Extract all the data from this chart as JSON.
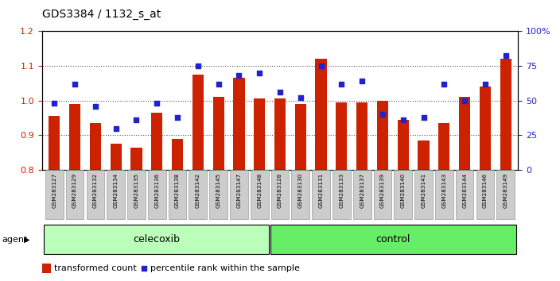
{
  "title": "GDS3384 / 1132_s_at",
  "samples": [
    "GSM283127",
    "GSM283129",
    "GSM283132",
    "GSM283134",
    "GSM283135",
    "GSM283136",
    "GSM283138",
    "GSM283142",
    "GSM283145",
    "GSM283147",
    "GSM283148",
    "GSM283128",
    "GSM283130",
    "GSM283131",
    "GSM283133",
    "GSM283137",
    "GSM283139",
    "GSM283140",
    "GSM283141",
    "GSM283143",
    "GSM283144",
    "GSM283146",
    "GSM283149"
  ],
  "bar_values": [
    0.955,
    0.99,
    0.935,
    0.875,
    0.865,
    0.965,
    0.89,
    1.075,
    1.01,
    1.065,
    1.005,
    1.005,
    0.99,
    1.12,
    0.995,
    0.995,
    1.0,
    0.945,
    0.885,
    0.935,
    1.01,
    1.04,
    1.12
  ],
  "percentile_values": [
    48,
    62,
    46,
    30,
    36,
    48,
    38,
    75,
    62,
    68,
    70,
    56,
    52,
    75,
    62,
    64,
    40,
    36,
    38,
    62,
    50,
    62,
    82
  ],
  "celecoxib_count": 11,
  "control_count": 12,
  "ylim_left": [
    0.8,
    1.2
  ],
  "ylim_right": [
    0,
    100
  ],
  "yticks_left": [
    0.8,
    0.9,
    1.0,
    1.1,
    1.2
  ],
  "yticks_right": [
    0,
    25,
    50,
    75,
    100
  ],
  "ytick_labels_right": [
    "0",
    "25",
    "50",
    "75",
    "100%"
  ],
  "bar_color": "#cc2200",
  "scatter_color": "#2222cc",
  "dotted_line_color": "#555555",
  "bg_color": "#ffffff",
  "agent_label": "agent",
  "celecoxib_label": "celecoxib",
  "control_label": "control",
  "legend_bar_label": "transformed count",
  "legend_scatter_label": "percentile rank within the sample",
  "celecoxib_color": "#bbffbb",
  "control_color": "#66ee66",
  "xlabel_color": "#cc2200",
  "ylabel_right_color": "#2222cc",
  "xtick_box_color": "#cccccc",
  "title_fontsize": 10,
  "axis_fontsize": 8,
  "legend_fontsize": 8
}
